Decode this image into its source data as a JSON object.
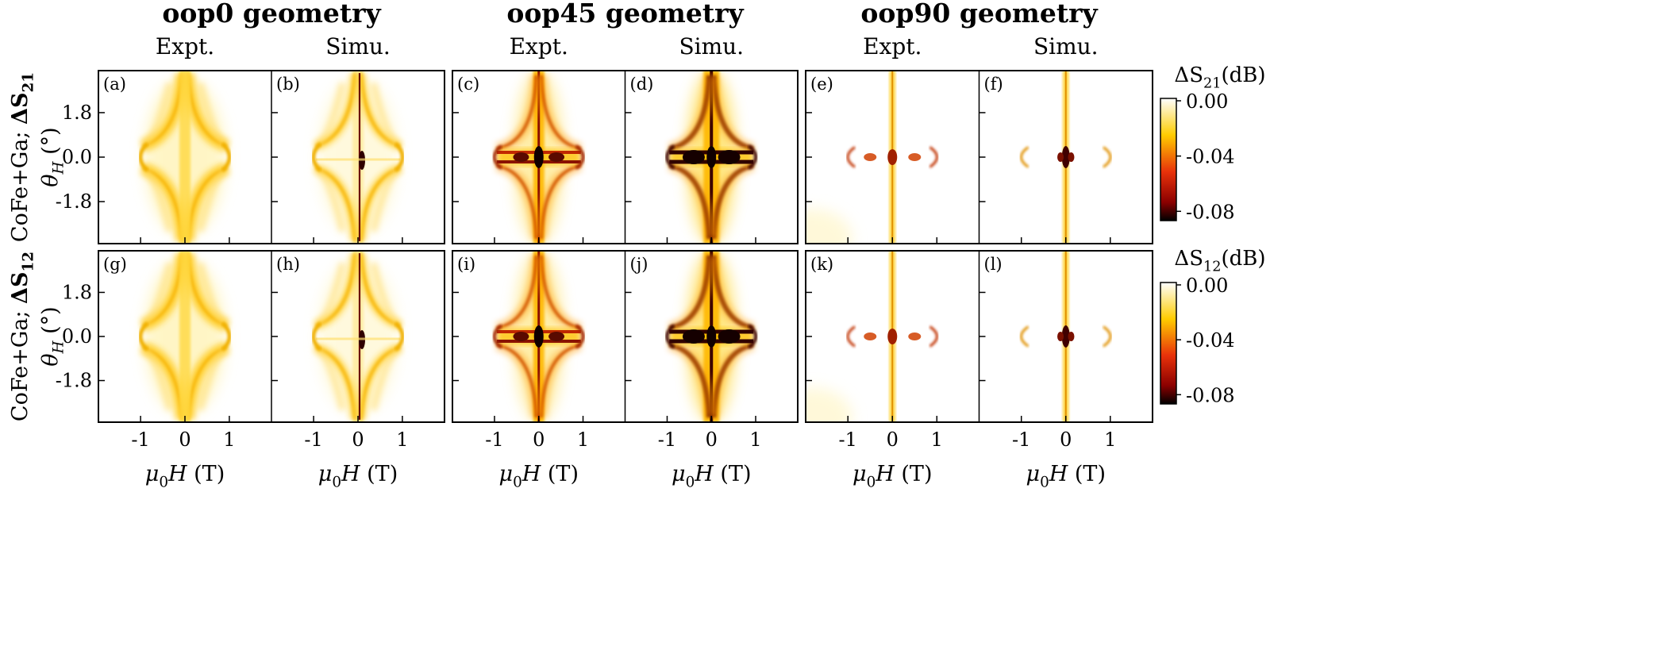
{
  "chart_data": {
    "type": "heatmap",
    "layout": "2 rows x 6 panels, grouped in 3 geometries",
    "geometries": [
      {
        "title": "oop0 geometry",
        "columns": [
          "Expt.",
          "Simu."
        ]
      },
      {
        "title": "oop45 geometry",
        "columns": [
          "Expt.",
          "Simu."
        ]
      },
      {
        "title": "oop90 geometry",
        "columns": [
          "Expt.",
          "Simu."
        ]
      }
    ],
    "rows": [
      {
        "sample": "CoFe+Ga; ",
        "quantity": "ΔS",
        "quantity_sub": "21",
        "colorbar_label": "ΔS",
        "colorbar_sub": "21",
        "colorbar_unit": "(dB)"
      },
      {
        "sample": "CoFe+Ga; ",
        "quantity": "ΔS",
        "quantity_sub": "12",
        "colorbar_label": "ΔS",
        "colorbar_sub": "12",
        "colorbar_unit": "(dB)"
      }
    ],
    "panel_labels": [
      "(a)",
      "(b)",
      "(c)",
      "(d)",
      "(e)",
      "(f)",
      "(g)",
      "(h)",
      "(i)",
      "(j)",
      "(k)",
      "(l)"
    ],
    "x_axis": {
      "label_symbol": "μ",
      "label_sub": "0",
      "label_var": "H",
      "label_unit": " (T)",
      "ticks": [
        -1,
        0,
        1
      ],
      "tick_labels": [
        "-1",
        "0",
        "1"
      ],
      "range": [
        -1.95,
        1.95
      ]
    },
    "y_axis": {
      "label_symbol": "θ",
      "label_sub": "H",
      "label_unit": " (°)",
      "ticks": [
        1.8,
        0.0,
        -1.8
      ],
      "tick_labels": [
        "1.8",
        "0.0",
        "-1.8"
      ],
      "range": [
        -3.5,
        3.5
      ]
    },
    "colorbar": {
      "ticks": [
        0.0,
        -0.04,
        -0.08
      ],
      "tick_labels": [
        "0.00",
        "-0.04",
        "-0.08"
      ],
      "range": [
        -0.085,
        0.0
      ],
      "colors": [
        "#000000",
        "#8b0000",
        "#e8320a",
        "#ffcc00",
        "#ffffff"
      ]
    },
    "features": {
      "oop0": {
        "resonance_field_T": 0.95,
        "description": "yellow curved arms from center, arcs near +/-1 T, weak absorption"
      },
      "oop45": {
        "resonance_field_T": 0.95,
        "description": "strong dark cross near 0 T and horizontal branch near 0 deg"
      },
      "oop90": {
        "resonance_field_T": 0.95,
        "description": "thin vertical line at 0 T with arcs at +/-1 T"
      }
    }
  }
}
